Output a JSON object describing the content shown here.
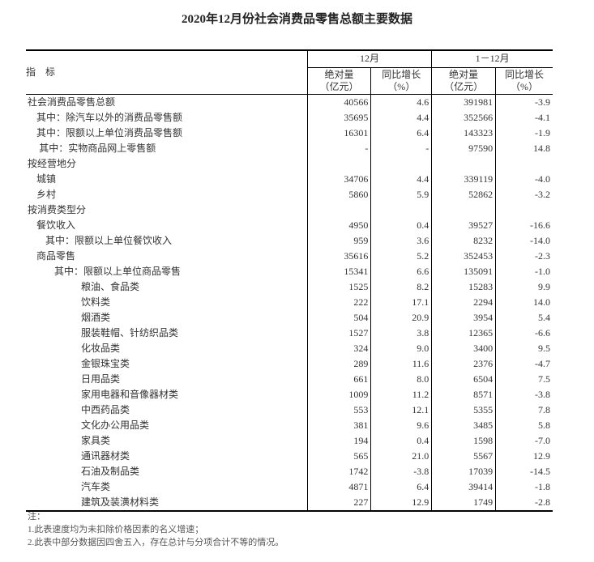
{
  "title": "2020年12月份社会消费品零售总额主要数据",
  "header": {
    "indicator": "指　标",
    "period1": "12月",
    "period2": "1－12月",
    "abs": "绝对量",
    "abs_unit": "（亿元）",
    "yoy": "同比增长",
    "yoy_unit": "（%）"
  },
  "rows": [
    {
      "label": "社会消费品零售总额",
      "indent": 0,
      "v": [
        "40566",
        "4.6",
        "391981",
        "-3.9"
      ]
    },
    {
      "label": "其中：除汽车以外的消费品零售额",
      "indent": 1,
      "v": [
        "35695",
        "4.4",
        "352566",
        "-4.1"
      ]
    },
    {
      "label": "其中：限额以上单位消费品零售额",
      "indent": 1,
      "v": [
        "16301",
        "6.4",
        "143323",
        "-1.9"
      ]
    },
    {
      "label": "其中：实物商品网上零售额",
      "indent": 1.3,
      "v": [
        "-",
        "-",
        "97590",
        "14.8"
      ]
    },
    {
      "label": "按经营地分",
      "indent": 0,
      "v": [
        "",
        "",
        "",
        ""
      ]
    },
    {
      "label": "城镇",
      "indent": 1,
      "v": [
        "34706",
        "4.4",
        "339119",
        "-4.0"
      ]
    },
    {
      "label": "乡村",
      "indent": 1,
      "v": [
        "5860",
        "5.9",
        "52862",
        "-3.2"
      ]
    },
    {
      "label": "按消费类型分",
      "indent": 0,
      "v": [
        "",
        "",
        "",
        ""
      ]
    },
    {
      "label": "餐饮收入",
      "indent": 1,
      "v": [
        "4950",
        "0.4",
        "39527",
        "-16.6"
      ]
    },
    {
      "label": "其中：限额以上单位餐饮收入",
      "indent": 2,
      "v": [
        "959",
        "3.6",
        "8232",
        "-14.0"
      ]
    },
    {
      "label": "商品零售",
      "indent": 1,
      "v": [
        "35616",
        "5.2",
        "352453",
        "-2.3"
      ]
    },
    {
      "label": "其中：限额以上单位商品零售",
      "indent": 3,
      "v": [
        "15341",
        "6.6",
        "135091",
        "-1.0"
      ]
    },
    {
      "label": "粮油、食品类",
      "indent": 6,
      "v": [
        "1525",
        "8.2",
        "15283",
        "9.9"
      ]
    },
    {
      "label": "饮料类",
      "indent": 6,
      "v": [
        "222",
        "17.1",
        "2294",
        "14.0"
      ]
    },
    {
      "label": "烟酒类",
      "indent": 6,
      "v": [
        "504",
        "20.9",
        "3954",
        "5.4"
      ]
    },
    {
      "label": "服装鞋帽、针纺织品类",
      "indent": 6,
      "v": [
        "1527",
        "3.8",
        "12365",
        "-6.6"
      ]
    },
    {
      "label": "化妆品类",
      "indent": 6,
      "v": [
        "324",
        "9.0",
        "3400",
        "9.5"
      ]
    },
    {
      "label": "金银珠宝类",
      "indent": 6,
      "v": [
        "289",
        "11.6",
        "2376",
        "-4.7"
      ]
    },
    {
      "label": "日用品类",
      "indent": 6,
      "v": [
        "661",
        "8.0",
        "6504",
        "7.5"
      ]
    },
    {
      "label": "家用电器和音像器材类",
      "indent": 6,
      "v": [
        "1009",
        "11.2",
        "8571",
        "-3.8"
      ]
    },
    {
      "label": "中西药品类",
      "indent": 6,
      "v": [
        "553",
        "12.1",
        "5355",
        "7.8"
      ]
    },
    {
      "label": "文化办公用品类",
      "indent": 6,
      "v": [
        "381",
        "9.6",
        "3485",
        "5.8"
      ]
    },
    {
      "label": "家具类",
      "indent": 6,
      "v": [
        "194",
        "0.4",
        "1598",
        "-7.0"
      ]
    },
    {
      "label": "通讯器材类",
      "indent": 6,
      "v": [
        "565",
        "21.0",
        "5567",
        "12.9"
      ]
    },
    {
      "label": "石油及制品类",
      "indent": 6,
      "v": [
        "1742",
        "-3.8",
        "17039",
        "-14.5"
      ]
    },
    {
      "label": "汽车类",
      "indent": 6,
      "v": [
        "4871",
        "6.4",
        "39414",
        "-1.8"
      ]
    },
    {
      "label": "建筑及装潢材料类",
      "indent": 6,
      "v": [
        "227",
        "12.9",
        "1749",
        "-2.8"
      ]
    }
  ],
  "notes": [
    "注：",
    "1.此表速度均为未扣除价格因素的名义增速；",
    "2.此表中部分数据因四舍五入，存在总计与分项合计不等的情况。"
  ]
}
